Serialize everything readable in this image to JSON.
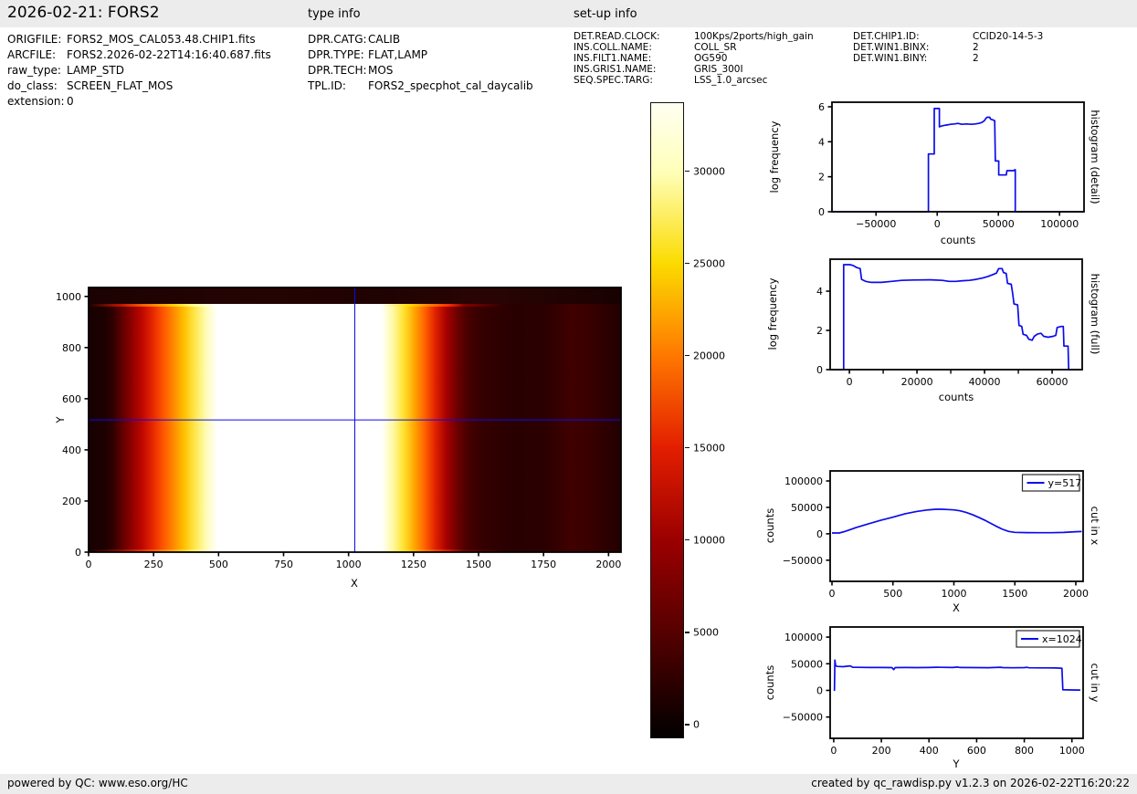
{
  "header": {
    "title": "2026-02-21: FORS2",
    "type_info_label": "type info",
    "setup_info_label": "set-up info"
  },
  "file_info": {
    "rows": [
      {
        "label": "ORIGFILE:",
        "value": "FORS2_MOS_CAL053.48.CHIP1.fits"
      },
      {
        "label": "ARCFILE:",
        "value": "FORS2.2026-02-22T14:16:40.687.fits"
      },
      {
        "label": "raw_type:",
        "value": "LAMP_STD"
      },
      {
        "label": "do_class:",
        "value": "SCREEN_FLAT_MOS"
      },
      {
        "label": "extension:",
        "value": "0"
      }
    ]
  },
  "type_info": {
    "rows": [
      {
        "label": "DPR.CATG:",
        "value": "CALIB"
      },
      {
        "label": "DPR.TYPE:",
        "value": "FLAT,LAMP"
      },
      {
        "label": "DPR.TECH:",
        "value": "MOS"
      },
      {
        "label": "TPL.ID:",
        "value": "FORS2_specphot_cal_daycalib"
      }
    ]
  },
  "setup_info": {
    "col1": [
      {
        "label": "DET.READ.CLOCK:",
        "value": "100Kps/2ports/high_gain"
      },
      {
        "label": "INS.COLL.NAME:",
        "value": "COLL_SR"
      },
      {
        "label": "INS.FILT1.NAME:",
        "value": "OG590"
      },
      {
        "label": "INS.GRIS1.NAME:",
        "value": "GRIS_300I"
      },
      {
        "label": "SEQ.SPEC.TARG:",
        "value": "LSS_1.0_arcsec"
      }
    ],
    "col2": [
      {
        "label": "DET.CHIP1.ID:",
        "value": "CCID20-14-5-3"
      },
      {
        "label": "DET.WIN1.BINX:",
        "value": "2"
      },
      {
        "label": "DET.WIN1.BINY:",
        "value": "2"
      }
    ]
  },
  "footer": {
    "left": "powered by QC: www.eso.org/HC",
    "right": "created by qc_rawdisp.py v1.2.3 on 2026-02-22T16:20:22"
  },
  "colors": {
    "plot_line": "#0b0bec",
    "strip_bg": "#ececec",
    "axis": "#000000"
  },
  "chart_data": [
    {
      "id": "main_image",
      "type": "heatmap",
      "xlabel": "X",
      "ylabel": "Y",
      "xlim": [
        0,
        2048
      ],
      "ylim": [
        0,
        1035
      ],
      "xticks": [
        0,
        250,
        500,
        750,
        1000,
        1250,
        1500,
        1750,
        2000
      ],
      "yticks": [
        0,
        200,
        400,
        600,
        800,
        1000
      ],
      "crosshair": {
        "x": 1024,
        "y": 517
      },
      "colormap": "hot"
    },
    {
      "id": "colorbar",
      "type": "colorbar",
      "vmin": -690,
      "vmax": 33700,
      "ticks": [
        0,
        5000,
        10000,
        15000,
        20000,
        25000,
        30000
      ],
      "stops": [
        {
          "pos": 0,
          "color": "#050000"
        },
        {
          "pos": 2,
          "color": "#0b0000"
        },
        {
          "pos": 16.5,
          "color": "#550000"
        },
        {
          "pos": 31.1,
          "color": "#9b0000"
        },
        {
          "pos": 45.6,
          "color": "#e31e00"
        },
        {
          "pos": 60.2,
          "color": "#ff7800"
        },
        {
          "pos": 74.7,
          "color": "#fbdb00"
        },
        {
          "pos": 89.2,
          "color": "#ffffba"
        },
        {
          "pos": 100,
          "color": "#fffff2"
        }
      ]
    },
    {
      "id": "hist_detail",
      "type": "line",
      "xlabel": "counts",
      "ylabel": "log frequency",
      "right_label": "histogram (detail)",
      "xlim": [
        -86000,
        120000
      ],
      "ylim": [
        0,
        6.26
      ],
      "xticks": [
        -50000,
        0,
        50000,
        100000
      ],
      "yticks": [
        0,
        2,
        4,
        6
      ],
      "points": [
        [
          -86000,
          0
        ],
        [
          -7200,
          0
        ],
        [
          -7200,
          3.3
        ],
        [
          -2400,
          3.3
        ],
        [
          -2400,
          5.9
        ],
        [
          1800,
          5.9
        ],
        [
          1800,
          4.85
        ],
        [
          3500,
          4.9
        ],
        [
          7000,
          4.95
        ],
        [
          11000,
          5.0
        ],
        [
          14000,
          5.02
        ],
        [
          17000,
          5.05
        ],
        [
          20000,
          5.0
        ],
        [
          24000,
          5.02
        ],
        [
          28000,
          5.0
        ],
        [
          31000,
          5.02
        ],
        [
          34000,
          5.05
        ],
        [
          36500,
          5.1
        ],
        [
          38500,
          5.2
        ],
        [
          40000,
          5.35
        ],
        [
          40700,
          5.4
        ],
        [
          43000,
          5.4
        ],
        [
          43600,
          5.3
        ],
        [
          45500,
          5.25
        ],
        [
          47000,
          5.2
        ],
        [
          47500,
          2.9
        ],
        [
          50300,
          2.9
        ],
        [
          50300,
          2.1
        ],
        [
          52000,
          2.1
        ],
        [
          56500,
          2.1
        ],
        [
          57000,
          2.35
        ],
        [
          62800,
          2.35
        ],
        [
          63300,
          2.4
        ],
        [
          63800,
          2.4
        ],
        [
          63800,
          0
        ],
        [
          120000,
          0
        ]
      ]
    },
    {
      "id": "hist_full",
      "type": "line",
      "xlabel": "counts",
      "ylabel": "log frequency",
      "right_label": "histogram (full)",
      "xlim": [
        -5700,
        68900
      ],
      "ylim": [
        0,
        5.63
      ],
      "xticks": [
        0,
        20000,
        40000,
        60000
      ],
      "minor_xticks": [
        10000,
        30000,
        50000
      ],
      "yticks": [
        0,
        2,
        4
      ],
      "points": [
        [
          -5700,
          0
        ],
        [
          -1700,
          0
        ],
        [
          -1700,
          5.35
        ],
        [
          200,
          5.35
        ],
        [
          1200,
          5.3
        ],
        [
          2200,
          5.2
        ],
        [
          3200,
          5.15
        ],
        [
          3600,
          4.6
        ],
        [
          4800,
          4.5
        ],
        [
          6500,
          4.45
        ],
        [
          9500,
          4.45
        ],
        [
          12500,
          4.5
        ],
        [
          15500,
          4.55
        ],
        [
          19000,
          4.57
        ],
        [
          24000,
          4.58
        ],
        [
          27500,
          4.55
        ],
        [
          29500,
          4.5
        ],
        [
          31500,
          4.5
        ],
        [
          33500,
          4.53
        ],
        [
          35500,
          4.55
        ],
        [
          37500,
          4.6
        ],
        [
          39500,
          4.67
        ],
        [
          41000,
          4.75
        ],
        [
          42500,
          4.85
        ],
        [
          43500,
          4.92
        ],
        [
          44200,
          5.15
        ],
        [
          45200,
          5.15
        ],
        [
          45600,
          4.95
        ],
        [
          46400,
          4.9
        ],
        [
          46800,
          4.4
        ],
        [
          47900,
          4.35
        ],
        [
          48300,
          3.9
        ],
        [
          48700,
          3.35
        ],
        [
          49800,
          3.3
        ],
        [
          50200,
          2.25
        ],
        [
          51000,
          2.2
        ],
        [
          51400,
          1.8
        ],
        [
          52400,
          1.75
        ],
        [
          53100,
          1.55
        ],
        [
          54100,
          1.5
        ],
        [
          54700,
          1.7
        ],
        [
          55700,
          1.82
        ],
        [
          56700,
          1.85
        ],
        [
          57500,
          1.7
        ],
        [
          58800,
          1.65
        ],
        [
          60300,
          1.7
        ],
        [
          61100,
          1.75
        ],
        [
          61500,
          2.15
        ],
        [
          62700,
          2.2
        ],
        [
          63300,
          2.2
        ],
        [
          63500,
          1.2
        ],
        [
          64700,
          1.2
        ],
        [
          64900,
          0
        ],
        [
          68900,
          0
        ]
      ]
    },
    {
      "id": "cut_in_x",
      "type": "line",
      "legend": "y=517",
      "xlabel": "X",
      "ylabel": "counts",
      "right_label": "cut in x",
      "xlim": [
        -15,
        2060
      ],
      "ylim": [
        -90000,
        119000
      ],
      "xticks": [
        0,
        500,
        1000,
        1500,
        2000
      ],
      "yticks": [
        -50000,
        0,
        50000,
        100000
      ],
      "points": [
        [
          0,
          1500
        ],
        [
          60,
          1500
        ],
        [
          100,
          4000
        ],
        [
          150,
          8000
        ],
        [
          200,
          12000
        ],
        [
          300,
          19000
        ],
        [
          400,
          25500
        ],
        [
          500,
          31500
        ],
        [
          600,
          38000
        ],
        [
          700,
          42500
        ],
        [
          780,
          45000
        ],
        [
          850,
          46500
        ],
        [
          900,
          46500
        ],
        [
          950,
          46000
        ],
        [
          1000,
          45200
        ],
        [
          1050,
          43500
        ],
        [
          1100,
          40500
        ],
        [
          1150,
          36500
        ],
        [
          1200,
          31500
        ],
        [
          1250,
          26000
        ],
        [
          1300,
          20000
        ],
        [
          1350,
          14000
        ],
        [
          1400,
          8500
        ],
        [
          1450,
          4500
        ],
        [
          1500,
          2800
        ],
        [
          1600,
          2200
        ],
        [
          1700,
          2000
        ],
        [
          1800,
          2000
        ],
        [
          1900,
          2500
        ],
        [
          1950,
          3200
        ],
        [
          2000,
          4000
        ],
        [
          2048,
          4300
        ]
      ]
    },
    {
      "id": "cut_in_y",
      "type": "line",
      "legend": "x=1024",
      "xlabel": "Y",
      "ylabel": "counts",
      "right_label": "cut in y",
      "xlim": [
        -15,
        1047
      ],
      "ylim": [
        -90000,
        119000
      ],
      "xticks": [
        0,
        200,
        400,
        600,
        800,
        1000
      ],
      "yticks": [
        -50000,
        0,
        50000,
        100000
      ],
      "points": [
        [
          0,
          300
        ],
        [
          3,
          300
        ],
        [
          5,
          57000
        ],
        [
          8,
          46000
        ],
        [
          15,
          45000
        ],
        [
          40,
          44500
        ],
        [
          60,
          45500
        ],
        [
          70,
          45800
        ],
        [
          80,
          43500
        ],
        [
          100,
          43200
        ],
        [
          150,
          43000
        ],
        [
          200,
          43000
        ],
        [
          245,
          42800
        ],
        [
          252,
          39000
        ],
        [
          258,
          42800
        ],
        [
          300,
          43000
        ],
        [
          350,
          42800
        ],
        [
          400,
          43000
        ],
        [
          430,
          43500
        ],
        [
          450,
          43200
        ],
        [
          500,
          43000
        ],
        [
          520,
          43800
        ],
        [
          530,
          43000
        ],
        [
          600,
          42800
        ],
        [
          650,
          42600
        ],
        [
          700,
          43500
        ],
        [
          710,
          42800
        ],
        [
          750,
          42500
        ],
        [
          800,
          42800
        ],
        [
          810,
          43200
        ],
        [
          820,
          42500
        ],
        [
          870,
          42300
        ],
        [
          900,
          42300
        ],
        [
          930,
          42000
        ],
        [
          950,
          41800
        ],
        [
          958,
          41500
        ],
        [
          962,
          1200
        ],
        [
          980,
          900
        ],
        [
          1000,
          800
        ],
        [
          1035,
          700
        ]
      ]
    }
  ]
}
